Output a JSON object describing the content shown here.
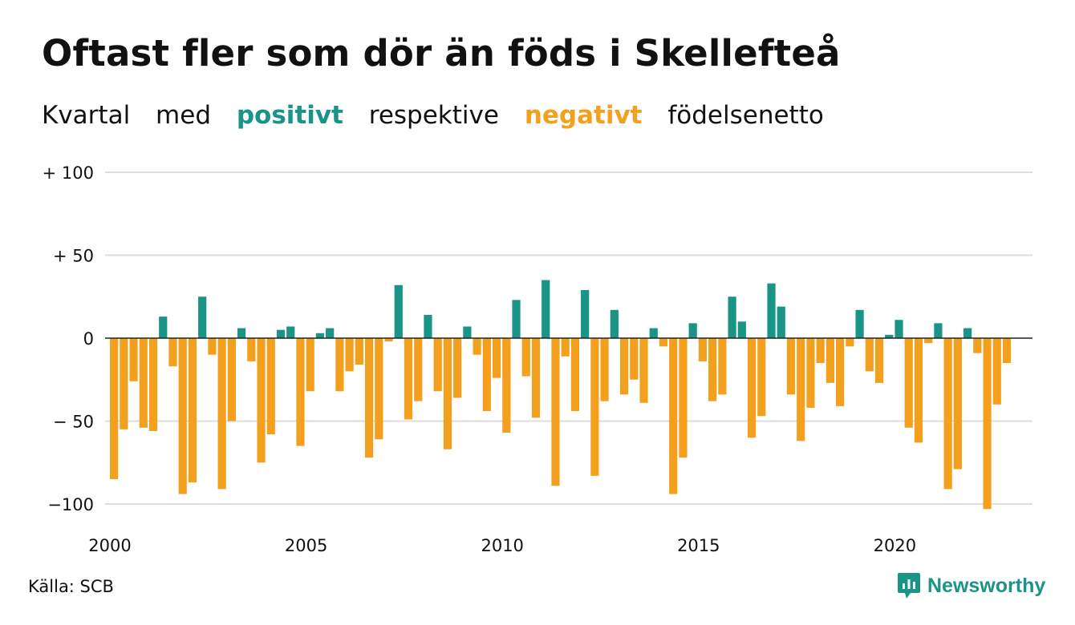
{
  "title": "Oftast fler som dör än föds i Skellefteå",
  "subtitle": {
    "word1": "Kvartal",
    "word2": "med",
    "positive": "positivt",
    "word3": "respektive",
    "negative": "negativt",
    "word4": "födelsenetto"
  },
  "source": "Källa: SCB",
  "brand": "Newsworthy",
  "colors": {
    "positive": "#1a9487",
    "negative": "#f4a01f",
    "grid": "#dddddd",
    "zero_line": "#222222",
    "text": "#111111"
  },
  "chart_data": {
    "type": "bar",
    "x_start": 2000,
    "periods_per_year": 4,
    "ylim": [
      -105,
      100
    ],
    "yticks": [
      {
        "value": 100,
        "label": "+ 100"
      },
      {
        "value": 50,
        "label": "+  50"
      },
      {
        "value": 0,
        "label": "0"
      },
      {
        "value": -50,
        "label": "− 50"
      },
      {
        "value": -100,
        "label": "−100"
      }
    ],
    "xticks": [
      "2000",
      "2005",
      "2010",
      "2015",
      "2020"
    ],
    "values": [
      -85,
      -55,
      -26,
      -54,
      -56,
      13,
      -17,
      -94,
      -87,
      25,
      -10,
      -91,
      -50,
      6,
      -14,
      -75,
      -58,
      5,
      7,
      -65,
      -32,
      3,
      6,
      -32,
      -20,
      -16,
      -72,
      -61,
      -2,
      32,
      -49,
      -38,
      14,
      -32,
      -67,
      -36,
      7,
      -10,
      -44,
      -24,
      -57,
      23,
      -23,
      -48,
      35,
      -89,
      -11,
      -44,
      29,
      -83,
      -38,
      17,
      -34,
      -25,
      -39,
      6,
      -5,
      -94,
      -72,
      9,
      -14,
      -38,
      -34,
      25,
      10,
      -60,
      -47,
      33,
      19,
      -34,
      -62,
      -42,
      -15,
      -27,
      -41,
      -5,
      17,
      -20,
      -27,
      2,
      11,
      -54,
      -63,
      -3,
      9,
      -91,
      -79,
      6,
      -9,
      -103,
      -40,
      -15
    ]
  }
}
